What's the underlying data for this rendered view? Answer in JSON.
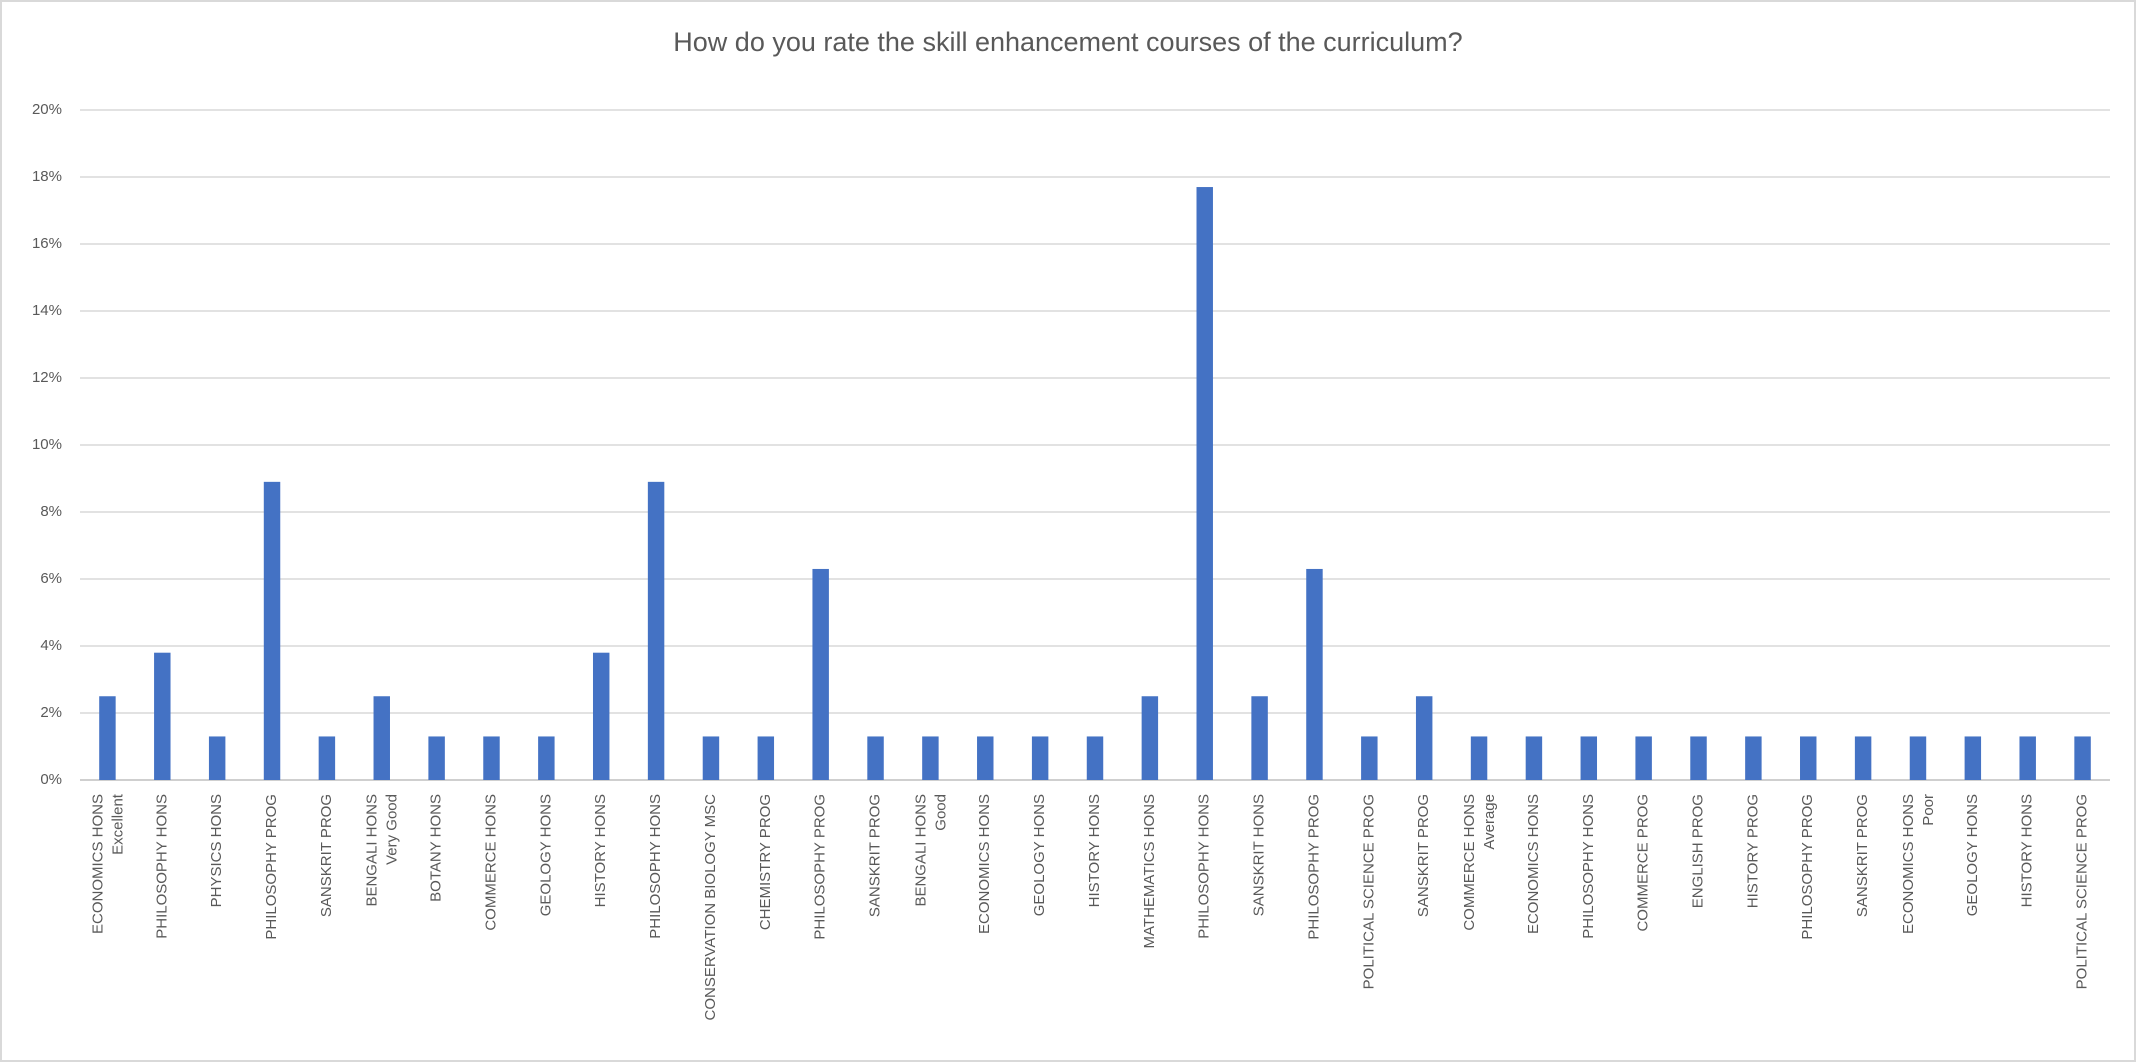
{
  "chart_data": {
    "type": "bar",
    "title": "How do you rate the skill enhancement courses of the curriculum?",
    "categories": [
      "ECONOMICS HONS",
      "PHILOSOPHY HONS",
      "PHYSICS HONS",
      "PHILOSOPHY PROG",
      "SANSKRIT PROG",
      "BENGALI HONS",
      "BOTANY HONS",
      "COMMERCE HONS",
      "GEOLOGY HONS",
      "HISTORY HONS",
      "PHILOSOPHY HONS",
      "CONSERVATION BIOLOGY MSC",
      "CHEMISTRY PROG",
      "PHILOSOPHY PROG",
      "SANSKRIT PROG",
      "BENGALI HONS",
      "ECONOMICS HONS",
      "GEOLOGY HONS",
      "HISTORY HONS",
      "MATHEMATICS HONS",
      "PHILOSOPHY HONS",
      "SANSKRIT HONS",
      "PHILOSOPHY PROG",
      "POLITICAL SCIENCE PROG",
      "SANSKRIT PROG",
      "COMMERCE HONS",
      "ECONOMICS HONS",
      "PHILOSOPHY HONS",
      "COMMERCE PROG",
      "ENGLISH PROG",
      "HISTORY PROG",
      "PHILOSOPHY PROG",
      "SANSKRIT PROG",
      "ECONOMICS HONS",
      "GEOLOGY HONS",
      "HISTORY HONS",
      "POLITICAL SCIENCE PROG"
    ],
    "group_labels": [
      "Excellent",
      null,
      null,
      null,
      null,
      "Very Good",
      null,
      null,
      null,
      null,
      null,
      null,
      null,
      null,
      null,
      "Good",
      null,
      null,
      null,
      null,
      null,
      null,
      null,
      null,
      null,
      "Average",
      null,
      null,
      null,
      null,
      null,
      null,
      null,
      "Poor",
      null,
      null,
      null
    ],
    "values": [
      2.5,
      3.8,
      1.3,
      8.9,
      1.3,
      2.5,
      1.3,
      1.3,
      1.3,
      3.8,
      8.9,
      1.3,
      1.3,
      6.3,
      1.3,
      1.3,
      1.3,
      1.3,
      1.3,
      2.5,
      17.7,
      2.5,
      6.3,
      1.3,
      2.5,
      1.3,
      1.3,
      1.3,
      1.3,
      1.3,
      1.3,
      1.3,
      1.3,
      1.3,
      1.3,
      1.3,
      1.3
    ],
    "color": "#4472c4",
    "ylim": [
      0,
      20
    ],
    "yticks": [
      {
        "value": 0,
        "label": "0%"
      },
      {
        "value": 2,
        "label": "2%"
      },
      {
        "value": 4,
        "label": "4%"
      },
      {
        "value": 6,
        "label": "6%"
      },
      {
        "value": 8,
        "label": "8%"
      },
      {
        "value": 10,
        "label": "10%"
      },
      {
        "value": 12,
        "label": "12%"
      },
      {
        "value": 14,
        "label": "14%"
      },
      {
        "value": 16,
        "label": "16%"
      },
      {
        "value": 18,
        "label": "18%"
      },
      {
        "value": 20,
        "label": "20%"
      }
    ],
    "grid": true
  }
}
